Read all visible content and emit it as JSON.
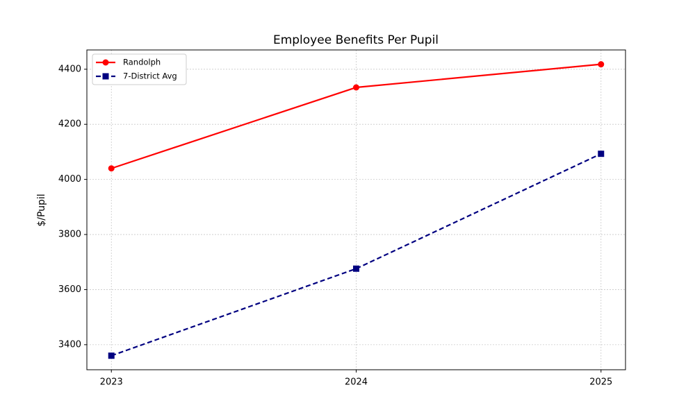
{
  "chart_data": {
    "type": "line",
    "title": "Employee Benefits Per Pupil",
    "y_label": "$/Pupil",
    "x": [
      2023,
      2024,
      2025
    ],
    "series": [
      {
        "name": "Randolph",
        "color": "#ff0000",
        "marker": "circle",
        "linestyle": "solid",
        "values": [
          4040,
          4334,
          4418
        ]
      },
      {
        "name": "7-District Avg",
        "color": "#000080",
        "marker": "square",
        "linestyle": "dashed",
        "values": [
          3360,
          3676,
          4093
        ]
      }
    ],
    "xlim": [
      2022.9,
      2025.1
    ],
    "xticks": [
      2023,
      2024,
      2025
    ],
    "ylim": [
      3309,
      4470
    ],
    "yticks": [
      3400,
      3600,
      3800,
      4000,
      4200,
      4400
    ],
    "grid": true,
    "legend": "upper left"
  }
}
